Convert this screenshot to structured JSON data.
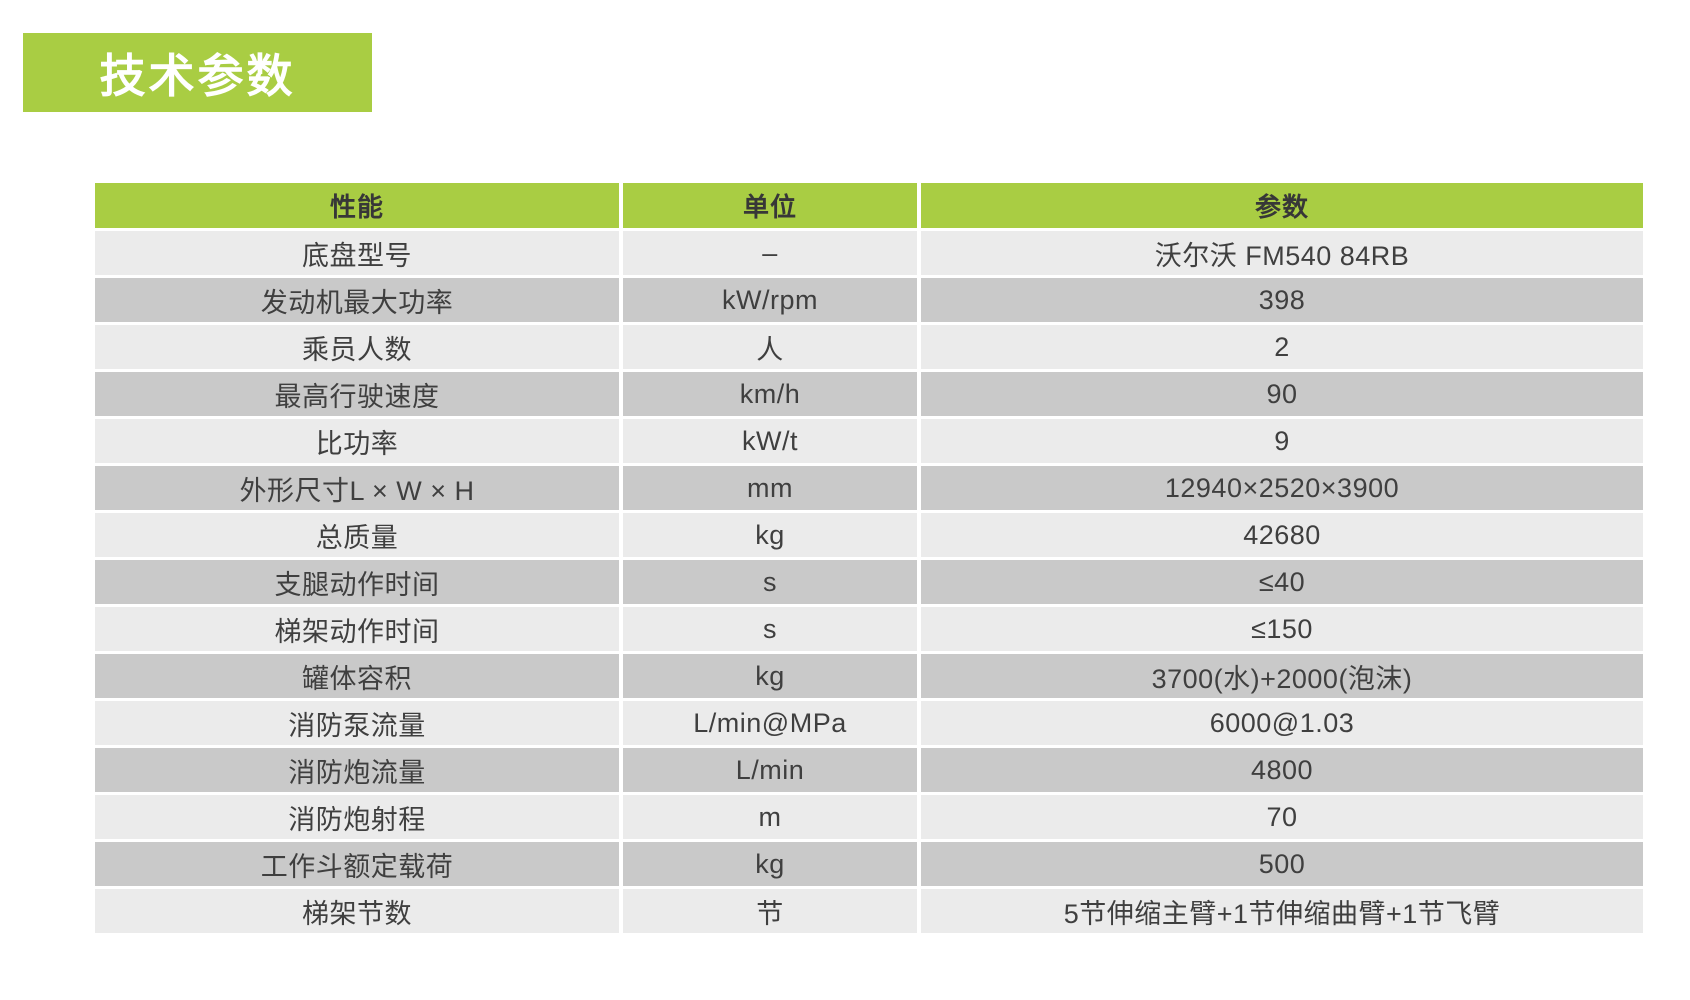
{
  "page": {
    "title": "技术参数"
  },
  "colors": {
    "accent_green": "#a9cd43",
    "row_light": "#ebebeb",
    "row_dark": "#c9c9c9",
    "text": "#3f3f3f"
  },
  "table": {
    "headers": [
      "性能",
      "单位",
      "参数"
    ],
    "rows": [
      [
        "底盘型号",
        "–",
        "沃尔沃 FM540 84RB"
      ],
      [
        "发动机最大功率",
        "kW/rpm",
        "398"
      ],
      [
        "乘员人数",
        "人",
        "2"
      ],
      [
        "最高行驶速度",
        "km/h",
        "90"
      ],
      [
        "比功率",
        "kW/t",
        "9"
      ],
      [
        "外形尺寸L × W × H",
        "mm",
        "12940×2520×3900"
      ],
      [
        "总质量",
        "kg",
        "42680"
      ],
      [
        "支腿动作时间",
        "s",
        "≤40"
      ],
      [
        "梯架动作时间",
        "s",
        "≤150"
      ],
      [
        "罐体容积",
        "kg",
        "3700(水)+2000(泡沫)"
      ],
      [
        "消防泵流量",
        "L/min@MPa",
        "6000@1.03"
      ],
      [
        "消防炮流量",
        "L/min",
        "4800"
      ],
      [
        "消防炮射程",
        "m",
        "70"
      ],
      [
        "工作斗额定载荷",
        "kg",
        "500"
      ],
      [
        "梯架节数",
        "节",
        "5节伸缩主臂+1节伸缩曲臂+1节飞臂"
      ]
    ]
  }
}
